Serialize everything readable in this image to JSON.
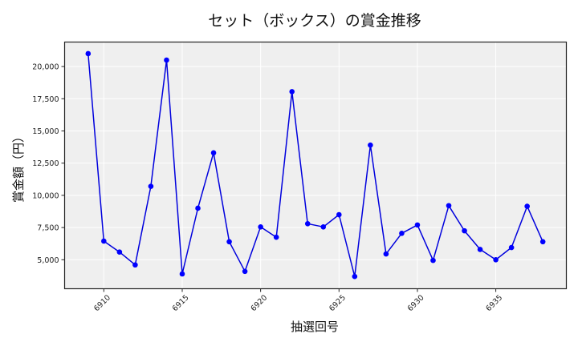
{
  "chart_data": {
    "type": "line",
    "title": "セット（ボックス）の賞金推移",
    "xlabel": "抽選回号",
    "ylabel": "賞金額（円）",
    "x": [
      6909,
      6910,
      6911,
      6912,
      6913,
      6914,
      6915,
      6916,
      6917,
      6918,
      6919,
      6920,
      6921,
      6922,
      6923,
      6924,
      6925,
      6926,
      6927,
      6928,
      6929,
      6930,
      6931,
      6932,
      6933,
      6934,
      6935,
      6936,
      6937,
      6938
    ],
    "series": [
      {
        "name": "賞金額",
        "color": "#0000dd",
        "values": [
          21000,
          6450,
          5600,
          4600,
          10700,
          20500,
          3900,
          9000,
          13300,
          6400,
          4100,
          7550,
          6750,
          18050,
          7800,
          7550,
          8500,
          3700,
          13900,
          5450,
          7050,
          7700,
          4950,
          9200,
          7250,
          5800,
          5000,
          5950,
          9150,
          6400
        ]
      }
    ],
    "x_ticks": [
      6910,
      6915,
      6920,
      6925,
      6930,
      6935
    ],
    "x_tick_labels": [
      "6910",
      "6915",
      "6920",
      "6925",
      "6930",
      "6935"
    ],
    "y_ticks": [
      5000,
      7500,
      10000,
      12500,
      15000,
      17500,
      20000
    ],
    "y_tick_labels": [
      "5,000",
      "7,500",
      "10,000",
      "12,500",
      "15,000",
      "17,500",
      "20,000"
    ],
    "xlim": [
      6907.5,
      6939.5
    ],
    "ylim": [
      2750,
      21900
    ],
    "grid": true,
    "legend": null,
    "colors": {
      "line": "#0000dd",
      "marker": "#0000ff",
      "plot_bg": "#efefef",
      "grid": "#ffffff",
      "frame": "#222222"
    }
  }
}
